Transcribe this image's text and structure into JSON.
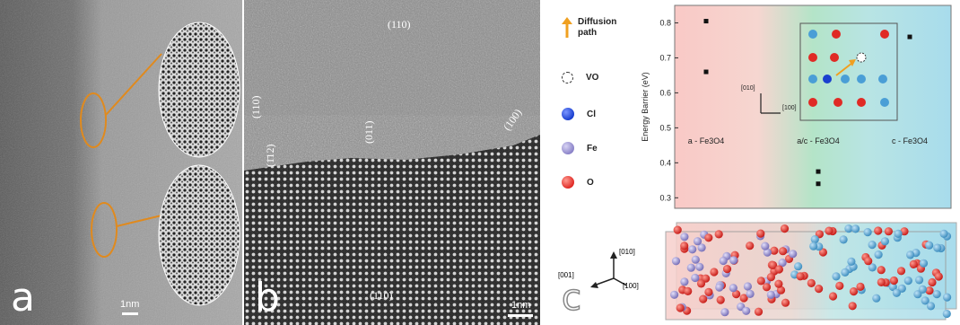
{
  "panel_a": {
    "letter": "a",
    "scale_label": "1nm",
    "accent_color": "#e08a1e"
  },
  "panel_b": {
    "letter": "b",
    "scale_label": "1nm",
    "miller_labels": [
      "(110)",
      "(1̄12)",
      "(110)",
      "(011)",
      "(100)",
      "(110)"
    ]
  },
  "panel_c": {
    "letter": "c",
    "legend": [
      {
        "label": "Diffusion path",
        "symbol": "arrow",
        "color": "#f0a020"
      },
      {
        "label": "VO",
        "symbol": "open-circle",
        "color": "#ffffff"
      },
      {
        "label": "Cl",
        "symbol": "ball",
        "color": "#1a3fcf"
      },
      {
        "label": "Fe",
        "symbol": "ball",
        "color": "#8a82c8"
      },
      {
        "label": "O",
        "symbol": "ball",
        "color": "#e02a25"
      }
    ],
    "inset_axes": [
      "[010]",
      "[100]"
    ],
    "bottom_axes": [
      "[010]",
      "[001]",
      "[100]"
    ]
  },
  "chart_data": {
    "type": "scatter",
    "ylabel": "Energy Barrier (eV)",
    "xlabel": "",
    "ylim": [
      0.27,
      0.85
    ],
    "yticks": [
      0.3,
      0.4,
      0.5,
      0.6,
      0.7,
      0.8
    ],
    "regions": [
      "a - Fe3O4",
      "a/c - Fe3O4",
      "c - Fe3O4"
    ],
    "region_colors": [
      "#f9c9c6",
      "#b4e4c8",
      "#a8dcec"
    ],
    "points": [
      {
        "region": 0,
        "y": 0.805
      },
      {
        "region": 0,
        "y": 0.66
      },
      {
        "region": 1,
        "y": 0.375
      },
      {
        "region": 1,
        "y": 0.34
      },
      {
        "region": 2,
        "y": 0.76
      }
    ]
  }
}
